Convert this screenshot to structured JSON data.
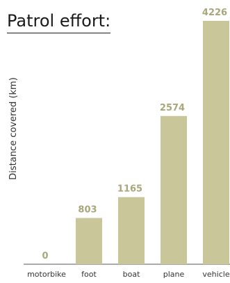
{
  "chart_data": {
    "type": "bar",
    "title": "Patrol effort:",
    "xlabel": "",
    "ylabel": "Distance covered (km)",
    "categories": [
      "motorbike",
      "foot",
      "boat",
      "plane",
      "vehicle"
    ],
    "values": [
      0,
      803,
      1165,
      2574,
      4226
    ],
    "ylim": [
      0,
      4226
    ],
    "grid": false,
    "data_labels": true,
    "colors": {
      "bar": "#c9c69a",
      "label": "#a8a67a",
      "axis": "#555555"
    }
  }
}
